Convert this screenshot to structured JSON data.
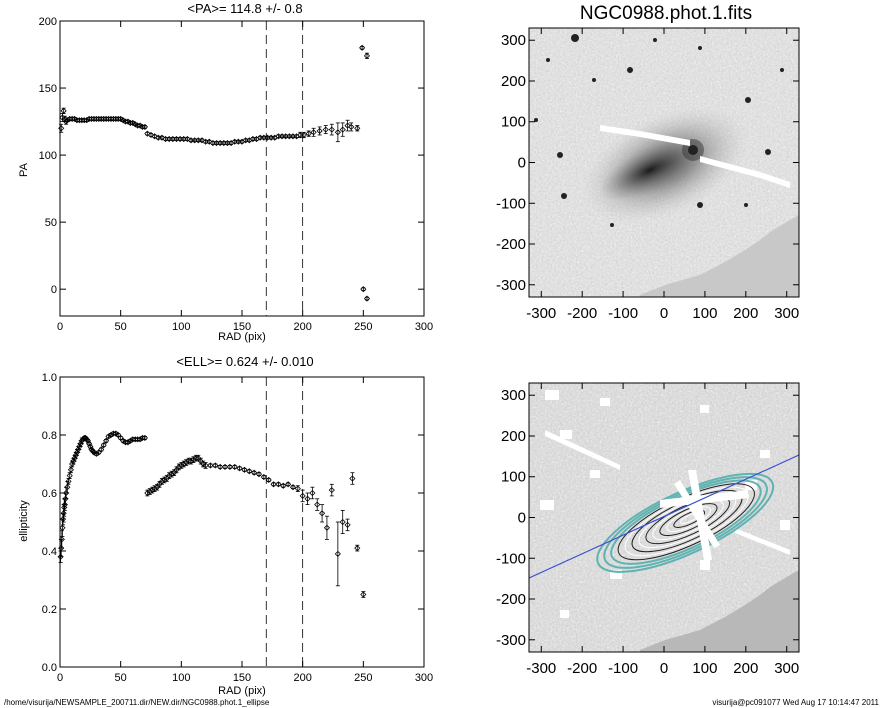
{
  "footer": {
    "left_path": "/home/visurija/NEWSAMPLE_200711.dir/NEW.dir/NGC0988.phot.1_ellipse",
    "right_stamp": "visurija@pc091077  Wed Aug 17 10:14:47 2011"
  },
  "colors": {
    "ellipse_contour": "#5fb3b0",
    "inner_contour": "#ffffff",
    "pa_line": "#3b4fd0",
    "mask": "#ffffff",
    "ring_marker": "#7fd8d8"
  },
  "chart_data": [
    {
      "type": "scatter",
      "name": "pa-profile",
      "title": "<PA>= 114.8 +/-   0.8",
      "xlabel": "RAD (pix)",
      "ylabel": "PA",
      "xlim": [
        0,
        300
      ],
      "ylim": [
        -20,
        200
      ],
      "xticks": [
        0,
        50,
        100,
        150,
        200,
        250,
        300
      ],
      "yticks": [
        0,
        50,
        100,
        150,
        200
      ],
      "vlines": [
        170,
        200
      ],
      "error_bars": true,
      "points": [
        [
          1,
          120,
          3
        ],
        [
          2,
          128,
          3
        ],
        [
          3,
          133,
          2
        ],
        [
          4,
          127,
          2
        ],
        [
          5,
          125,
          2
        ],
        [
          6,
          126,
          1
        ],
        [
          8,
          127,
          1
        ],
        [
          10,
          127,
          1
        ],
        [
          12,
          127,
          1
        ],
        [
          14,
          126,
          1
        ],
        [
          16,
          126,
          1
        ],
        [
          18,
          126,
          1
        ],
        [
          20,
          126,
          1
        ],
        [
          22,
          126,
          1
        ],
        [
          24,
          127,
          1
        ],
        [
          26,
          127,
          1
        ],
        [
          28,
          127,
          1
        ],
        [
          30,
          127,
          1
        ],
        [
          32,
          127,
          1
        ],
        [
          34,
          127,
          1
        ],
        [
          36,
          127,
          1
        ],
        [
          38,
          127,
          1
        ],
        [
          40,
          127,
          1
        ],
        [
          42,
          127,
          1
        ],
        [
          44,
          127,
          1
        ],
        [
          46,
          127,
          1
        ],
        [
          48,
          127,
          1
        ],
        [
          50,
          127,
          1
        ],
        [
          52,
          126,
          1
        ],
        [
          54,
          125,
          1
        ],
        [
          56,
          125,
          1
        ],
        [
          58,
          124,
          1
        ],
        [
          60,
          124,
          1
        ],
        [
          62,
          123,
          1
        ],
        [
          64,
          122,
          1
        ],
        [
          66,
          122,
          1
        ],
        [
          68,
          121,
          1
        ],
        [
          70,
          121,
          1
        ],
        [
          72,
          116,
          1
        ],
        [
          75,
          115,
          1
        ],
        [
          78,
          114,
          1
        ],
        [
          81,
          113,
          1
        ],
        [
          84,
          113,
          1
        ],
        [
          87,
          112,
          1
        ],
        [
          90,
          112,
          1
        ],
        [
          93,
          112,
          1
        ],
        [
          96,
          112,
          1
        ],
        [
          99,
          112,
          1
        ],
        [
          102,
          112,
          1
        ],
        [
          105,
          112,
          1
        ],
        [
          108,
          111,
          1
        ],
        [
          111,
          111,
          1
        ],
        [
          114,
          111,
          1
        ],
        [
          117,
          111,
          1
        ],
        [
          120,
          110,
          1
        ],
        [
          123,
          110,
          1
        ],
        [
          126,
          109,
          1
        ],
        [
          129,
          109,
          1
        ],
        [
          132,
          109,
          1
        ],
        [
          135,
          109,
          1
        ],
        [
          138,
          109,
          1
        ],
        [
          141,
          109,
          1
        ],
        [
          144,
          110,
          1
        ],
        [
          147,
          110,
          1
        ],
        [
          150,
          110,
          1
        ],
        [
          153,
          111,
          1
        ],
        [
          156,
          111,
          1
        ],
        [
          159,
          112,
          1
        ],
        [
          162,
          112,
          1
        ],
        [
          165,
          113,
          1
        ],
        [
          168,
          113,
          1
        ],
        [
          171,
          113,
          1
        ],
        [
          174,
          113,
          1
        ],
        [
          177,
          113,
          1
        ],
        [
          180,
          114,
          1
        ],
        [
          183,
          114,
          1
        ],
        [
          186,
          114,
          1
        ],
        [
          189,
          114,
          1
        ],
        [
          192,
          114,
          1
        ],
        [
          195,
          114,
          1
        ],
        [
          198,
          115,
          2
        ],
        [
          201,
          115,
          2
        ],
        [
          205,
          116,
          2
        ],
        [
          209,
          117,
          3
        ],
        [
          214,
          118,
          3
        ],
        [
          219,
          119,
          3
        ],
        [
          224,
          119,
          4
        ],
        [
          229,
          117,
          7
        ],
        [
          233,
          119,
          5
        ],
        [
          237,
          122,
          4
        ],
        [
          240,
          121,
          3
        ],
        [
          245,
          120,
          2
        ],
        [
          249,
          180,
          1
        ],
        [
          253,
          174,
          2
        ],
        [
          250,
          0,
          1
        ],
        [
          253,
          -7,
          1
        ]
      ]
    },
    {
      "type": "scatter",
      "name": "ellipticity-profile",
      "title": "<ELL>= 0.624 +/-  0.010",
      "xlabel": "RAD (pix)",
      "ylabel": "ellipticity",
      "xlim": [
        0,
        300
      ],
      "ylim": [
        0.0,
        1.0
      ],
      "xticks": [
        0,
        50,
        100,
        150,
        200,
        250,
        300
      ],
      "yticks": [
        0.0,
        0.2,
        0.4,
        0.6,
        0.8,
        1.0
      ],
      "vlines": [
        170,
        200
      ],
      "error_bars": true,
      "points": [
        [
          0.5,
          0.38,
          0.02
        ],
        [
          1,
          0.41,
          0.03
        ],
        [
          1.5,
          0.44,
          0.03
        ],
        [
          2,
          0.48,
          0.03
        ],
        [
          2.5,
          0.51,
          0.02
        ],
        [
          3,
          0.53,
          0.03
        ],
        [
          3.5,
          0.55,
          0.03
        ],
        [
          4,
          0.56,
          0.02
        ],
        [
          4.5,
          0.58,
          0.02
        ],
        [
          5,
          0.6,
          0.02
        ],
        [
          6,
          0.62,
          0.02
        ],
        [
          7,
          0.64,
          0.01
        ],
        [
          8,
          0.66,
          0.01
        ],
        [
          9,
          0.68,
          0.01
        ],
        [
          10,
          0.7,
          0.01
        ],
        [
          11,
          0.71,
          0.01
        ],
        [
          12,
          0.72,
          0.01
        ],
        [
          13,
          0.73,
          0.01
        ],
        [
          14,
          0.74,
          0.01
        ],
        [
          15,
          0.75,
          0.01
        ],
        [
          16,
          0.76,
          0.01
        ],
        [
          17,
          0.77,
          0.01
        ],
        [
          18,
          0.78,
          0.01
        ],
        [
          19,
          0.785,
          0.005
        ],
        [
          20,
          0.79,
          0.005
        ],
        [
          21,
          0.79,
          0.005
        ],
        [
          22,
          0.785,
          0.005
        ],
        [
          23,
          0.78,
          0.005
        ],
        [
          24,
          0.77,
          0.005
        ],
        [
          25,
          0.76,
          0.005
        ],
        [
          26,
          0.75,
          0.005
        ],
        [
          27,
          0.745,
          0.005
        ],
        [
          28,
          0.74,
          0.005
        ],
        [
          30,
          0.735,
          0.005
        ],
        [
          32,
          0.74,
          0.005
        ],
        [
          34,
          0.75,
          0.005
        ],
        [
          36,
          0.765,
          0.005
        ],
        [
          38,
          0.78,
          0.005
        ],
        [
          40,
          0.795,
          0.005
        ],
        [
          42,
          0.8,
          0.005
        ],
        [
          44,
          0.805,
          0.005
        ],
        [
          46,
          0.805,
          0.005
        ],
        [
          48,
          0.8,
          0.005
        ],
        [
          50,
          0.79,
          0.005
        ],
        [
          52,
          0.78,
          0.005
        ],
        [
          54,
          0.775,
          0.005
        ],
        [
          56,
          0.775,
          0.005
        ],
        [
          58,
          0.78,
          0.005
        ],
        [
          60,
          0.785,
          0.005
        ],
        [
          62,
          0.785,
          0.005
        ],
        [
          64,
          0.785,
          0.005
        ],
        [
          66,
          0.785,
          0.005
        ],
        [
          68,
          0.79,
          0.005
        ],
        [
          70,
          0.79,
          0.005
        ],
        [
          72,
          0.6,
          0.01
        ],
        [
          74,
          0.605,
          0.01
        ],
        [
          76,
          0.61,
          0.01
        ],
        [
          78,
          0.615,
          0.01
        ],
        [
          80,
          0.62,
          0.01
        ],
        [
          82,
          0.63,
          0.01
        ],
        [
          84,
          0.64,
          0.01
        ],
        [
          86,
          0.645,
          0.01
        ],
        [
          88,
          0.65,
          0.01
        ],
        [
          90,
          0.66,
          0.01
        ],
        [
          92,
          0.665,
          0.01
        ],
        [
          94,
          0.67,
          0.01
        ],
        [
          96,
          0.68,
          0.01
        ],
        [
          98,
          0.69,
          0.01
        ],
        [
          100,
          0.695,
          0.01
        ],
        [
          102,
          0.7,
          0.01
        ],
        [
          104,
          0.705,
          0.01
        ],
        [
          106,
          0.71,
          0.01
        ],
        [
          108,
          0.71,
          0.01
        ],
        [
          110,
          0.715,
          0.01
        ],
        [
          112,
          0.72,
          0.01
        ],
        [
          114,
          0.72,
          0.01
        ],
        [
          116,
          0.71,
          0.01
        ],
        [
          118,
          0.7,
          0.01
        ],
        [
          120,
          0.695,
          0.01
        ],
        [
          124,
          0.695,
          0.005
        ],
        [
          128,
          0.695,
          0.005
        ],
        [
          132,
          0.69,
          0.005
        ],
        [
          136,
          0.69,
          0.005
        ],
        [
          140,
          0.69,
          0.005
        ],
        [
          144,
          0.69,
          0.005
        ],
        [
          148,
          0.685,
          0.005
        ],
        [
          152,
          0.68,
          0.005
        ],
        [
          156,
          0.675,
          0.005
        ],
        [
          160,
          0.67,
          0.005
        ],
        [
          164,
          0.665,
          0.005
        ],
        [
          168,
          0.655,
          0.005
        ],
        [
          172,
          0.645,
          0.005
        ],
        [
          176,
          0.63,
          0.005
        ],
        [
          180,
          0.63,
          0.005
        ],
        [
          184,
          0.625,
          0.005
        ],
        [
          188,
          0.63,
          0.005
        ],
        [
          192,
          0.62,
          0.005
        ],
        [
          196,
          0.615,
          0.01
        ],
        [
          200,
          0.59,
          0.02
        ],
        [
          204,
          0.58,
          0.02
        ],
        [
          208,
          0.6,
          0.02
        ],
        [
          212,
          0.56,
          0.02
        ],
        [
          216,
          0.53,
          0.03
        ],
        [
          220,
          0.48,
          0.04
        ],
        [
          224,
          0.61,
          0.02
        ],
        [
          229,
          0.39,
          0.11
        ],
        [
          233,
          0.5,
          0.04
        ],
        [
          237,
          0.49,
          0.02
        ],
        [
          241,
          0.65,
          0.02
        ],
        [
          245,
          0.41,
          0.01
        ],
        [
          250,
          0.25,
          0.01
        ]
      ]
    },
    {
      "type": "heatmap",
      "name": "galaxy-image",
      "title": "NGC0988.phot.1.fits",
      "xlim": [
        -330,
        330
      ],
      "ylim": [
        -330,
        330
      ],
      "xticks": [
        -300,
        -200,
        -100,
        0,
        100,
        200,
        300
      ],
      "yticks": [
        -300,
        -200,
        -100,
        0,
        100,
        200,
        300
      ]
    },
    {
      "type": "heatmap",
      "name": "masked-ellipse-image",
      "title": "",
      "xlim": [
        -330,
        330
      ],
      "ylim": [
        -330,
        330
      ],
      "xticks": [
        -300,
        -200,
        -100,
        0,
        100,
        200,
        300
      ],
      "yticks": [
        -300,
        -200,
        -100,
        0,
        100,
        200,
        300
      ]
    }
  ]
}
